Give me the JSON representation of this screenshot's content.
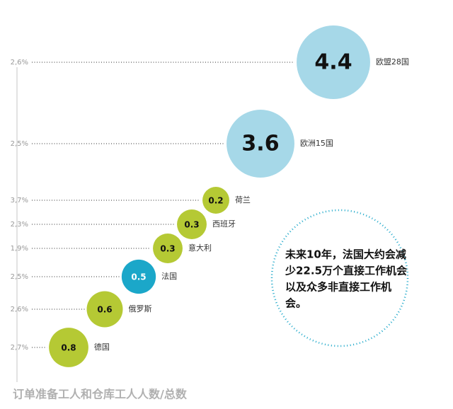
{
  "chart_data": {
    "type": "bubble",
    "title": "订单准备工人和仓库工人人数/总数",
    "categories": [
      "欧盟28国",
      "欧洲15国",
      "荷兰",
      "西班牙",
      "意大利",
      "法国",
      "俄罗斯",
      "德国"
    ],
    "values": [
      4.4,
      3.6,
      0.2,
      0.3,
      0.3,
      0.5,
      0.6,
      0.8
    ],
    "shares": [
      "2,6%",
      "2,5%",
      "3,7%",
      "2,3%",
      "1,9%",
      "2,5%",
      "2,6%",
      "2,7%"
    ],
    "colors": [
      "#a6d8e8",
      "#a6d8e8",
      "#b5c934",
      "#b5c934",
      "#b5c934",
      "#1ba7c9",
      "#b5c934",
      "#b5c934"
    ],
    "annotation": [
      "未来10年，法国大约会减",
      "少22.5万个直接工作机会",
      "以及众多非直接工作机",
      "会。"
    ]
  }
}
